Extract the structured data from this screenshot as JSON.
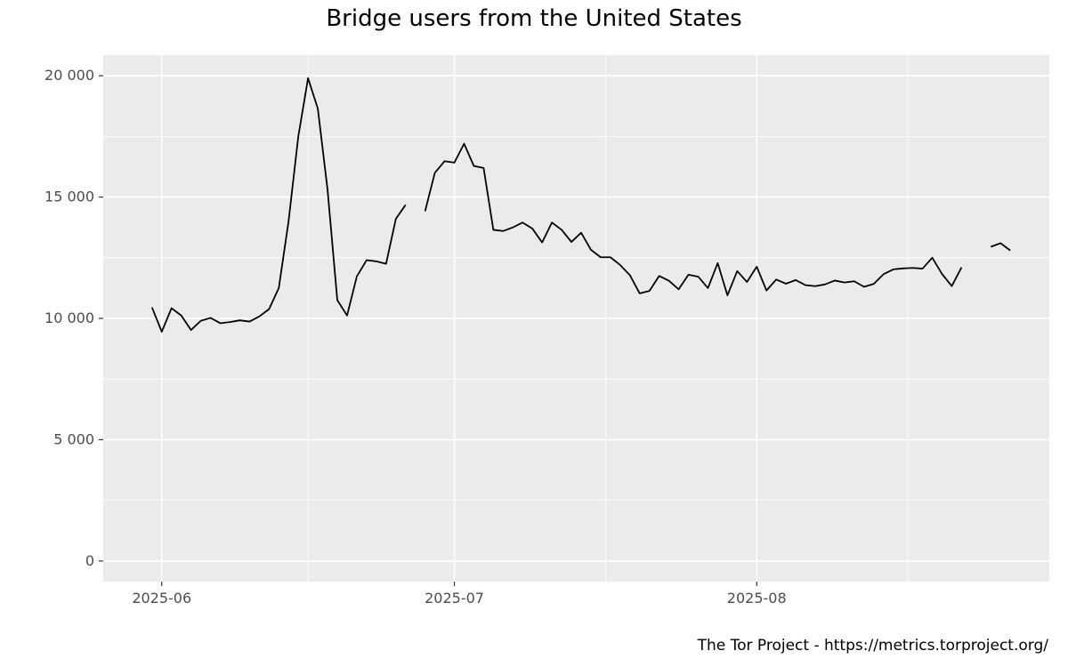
{
  "title": "Bridge users from the United States",
  "caption": "The Tor Project - https://metrics.torproject.org/",
  "chart_data": {
    "type": "line",
    "title": "Bridge users from the United States",
    "xlabel": "",
    "ylabel": "",
    "x_tick_labels": [
      "2025-06",
      "2025-07",
      "2025-08"
    ],
    "x_ticks": [
      "2025-06-01",
      "2025-07-01",
      "2025-08-01"
    ],
    "y_ticks": [
      0,
      5000,
      10000,
      15000,
      20000
    ],
    "y_tick_labels": [
      "0",
      "5 000",
      "10 000",
      "15 000",
      "20 000"
    ],
    "ylim": [
      -850,
      20850
    ],
    "xlim": [
      "2025-05-26",
      "2025-08-31"
    ],
    "grid": true,
    "colors": {
      "panel": "#ebebeb",
      "grid": "#ffffff",
      "line": "#000000",
      "tick": "#4d4d4d"
    },
    "series": [
      {
        "segments": [
          [
            [
              "2025-05-31",
              10450
            ],
            [
              "2025-06-01",
              9450
            ],
            [
              "2025-06-02",
              10420
            ],
            [
              "2025-06-03",
              10120
            ],
            [
              "2025-06-04",
              9520
            ],
            [
              "2025-06-05",
              9900
            ],
            [
              "2025-06-06",
              10020
            ],
            [
              "2025-06-07",
              9800
            ],
            [
              "2025-06-08",
              9850
            ],
            [
              "2025-06-09",
              9920
            ],
            [
              "2025-06-10",
              9870
            ],
            [
              "2025-06-11",
              10080
            ],
            [
              "2025-06-12",
              10380
            ],
            [
              "2025-06-13",
              11250
            ],
            [
              "2025-06-14",
              14000
            ],
            [
              "2025-06-15",
              17500
            ],
            [
              "2025-06-16",
              19900
            ],
            [
              "2025-06-17",
              18650
            ],
            [
              "2025-06-18",
              15300
            ],
            [
              "2025-06-19",
              10750
            ],
            [
              "2025-06-20",
              10120
            ],
            [
              "2025-06-21",
              11730
            ],
            [
              "2025-06-22",
              12400
            ],
            [
              "2025-06-23",
              12350
            ],
            [
              "2025-06-24",
              12250
            ],
            [
              "2025-06-25",
              14100
            ],
            [
              "2025-06-26",
              14680
            ]
          ],
          [
            [
              "2025-06-28",
              14420
            ],
            [
              "2025-06-29",
              16000
            ],
            [
              "2025-06-30",
              16480
            ],
            [
              "2025-07-01",
              16420
            ],
            [
              "2025-07-02",
              17200
            ],
            [
              "2025-07-03",
              16280
            ],
            [
              "2025-07-04",
              16200
            ],
            [
              "2025-07-05",
              13650
            ],
            [
              "2025-07-06",
              13600
            ],
            [
              "2025-07-07",
              13750
            ],
            [
              "2025-07-08",
              13950
            ],
            [
              "2025-07-09",
              13700
            ],
            [
              "2025-07-10",
              13130
            ],
            [
              "2025-07-11",
              13950
            ],
            [
              "2025-07-12",
              13650
            ],
            [
              "2025-07-13",
              13150
            ],
            [
              "2025-07-14",
              13530
            ],
            [
              "2025-07-15",
              12830
            ],
            [
              "2025-07-16",
              12520
            ],
            [
              "2025-07-17",
              12520
            ],
            [
              "2025-07-18",
              12200
            ],
            [
              "2025-07-19",
              11780
            ],
            [
              "2025-07-20",
              11030
            ],
            [
              "2025-07-21",
              11130
            ],
            [
              "2025-07-22",
              11750
            ],
            [
              "2025-07-23",
              11550
            ],
            [
              "2025-07-24",
              11200
            ],
            [
              "2025-07-25",
              11800
            ],
            [
              "2025-07-26",
              11720
            ],
            [
              "2025-07-27",
              11250
            ],
            [
              "2025-07-28",
              12280
            ],
            [
              "2025-07-29",
              10950
            ],
            [
              "2025-07-30",
              11950
            ],
            [
              "2025-07-31",
              11500
            ],
            [
              "2025-08-01",
              12130
            ],
            [
              "2025-08-02",
              11150
            ],
            [
              "2025-08-03",
              11600
            ],
            [
              "2025-08-04",
              11430
            ],
            [
              "2025-08-05",
              11580
            ],
            [
              "2025-08-06",
              11370
            ],
            [
              "2025-08-07",
              11330
            ],
            [
              "2025-08-08",
              11400
            ],
            [
              "2025-08-09",
              11560
            ],
            [
              "2025-08-10",
              11480
            ],
            [
              "2025-08-11",
              11530
            ],
            [
              "2025-08-12",
              11300
            ],
            [
              "2025-08-13",
              11420
            ],
            [
              "2025-08-14",
              11820
            ],
            [
              "2025-08-15",
              12020
            ],
            [
              "2025-08-16",
              12060
            ],
            [
              "2025-08-17",
              12080
            ],
            [
              "2025-08-18",
              12050
            ],
            [
              "2025-08-19",
              12500
            ],
            [
              "2025-08-20",
              11830
            ],
            [
              "2025-08-21",
              11330
            ],
            [
              "2025-08-22",
              12100
            ]
          ],
          [
            [
              "2025-08-25",
              12950
            ],
            [
              "2025-08-26",
              13100
            ],
            [
              "2025-08-27",
              12800
            ]
          ]
        ]
      }
    ]
  }
}
